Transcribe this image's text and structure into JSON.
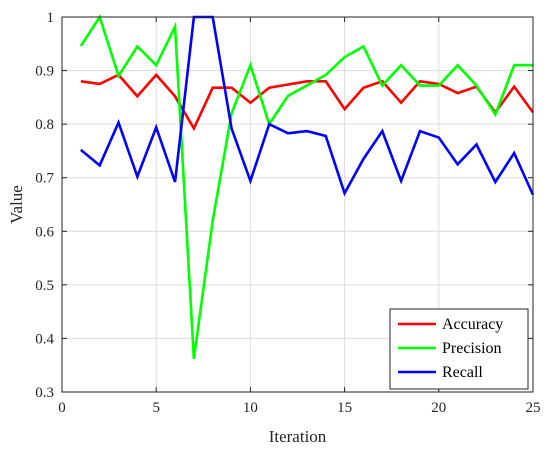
{
  "chart_data": {
    "type": "line",
    "title": "",
    "xlabel": "Iteration",
    "ylabel": "Value",
    "xlim": [
      0,
      25
    ],
    "ylim": [
      0.3,
      1.0
    ],
    "xticks": [
      0,
      5,
      10,
      15,
      20,
      25
    ],
    "xtick_labels": [
      "0",
      "5",
      "10",
      "15",
      "20",
      "25"
    ],
    "yticks": [
      0.3,
      0.4,
      0.5,
      0.6,
      0.7,
      0.8,
      0.9,
      1.0
    ],
    "ytick_labels": [
      "0.3",
      "0.4",
      "0.5",
      "0.6",
      "0.7",
      "0.8",
      "0.9",
      "1"
    ],
    "grid": true,
    "legend_position": "bottom-right",
    "x": [
      1,
      2,
      3,
      4,
      5,
      6,
      7,
      8,
      9,
      10,
      11,
      12,
      13,
      14,
      15,
      16,
      17,
      18,
      19,
      20,
      21,
      22,
      23,
      24,
      25
    ],
    "series": [
      {
        "name": "Accuracy",
        "color": "#ff0000",
        "values": [
          0.88,
          0.875,
          0.892,
          0.852,
          0.892,
          0.852,
          0.792,
          0.868,
          0.868,
          0.84,
          0.868,
          0.874,
          0.88,
          0.88,
          0.828,
          0.868,
          0.88,
          0.84,
          0.88,
          0.875,
          0.858,
          0.87,
          0.822,
          0.87,
          0.822
        ]
      },
      {
        "name": "Precision",
        "color": "#00ff00",
        "values": [
          0.946,
          1.0,
          0.89,
          0.945,
          0.91,
          0.982,
          0.362,
          0.62,
          0.82,
          0.91,
          0.8,
          0.853,
          0.872,
          0.892,
          0.925,
          0.945,
          0.872,
          0.91,
          0.872,
          0.872,
          0.91,
          0.872,
          0.818,
          0.91,
          0.91
        ]
      },
      {
        "name": "Recall",
        "color": "#0000ff",
        "values": [
          0.752,
          0.723,
          0.803,
          0.702,
          0.794,
          0.692,
          1.0,
          1.0,
          0.792,
          0.694,
          0.8,
          0.783,
          0.787,
          0.778,
          0.671,
          0.735,
          0.787,
          0.694,
          0.787,
          0.775,
          0.725,
          0.762,
          0.692,
          0.746,
          0.668
        ]
      }
    ]
  }
}
